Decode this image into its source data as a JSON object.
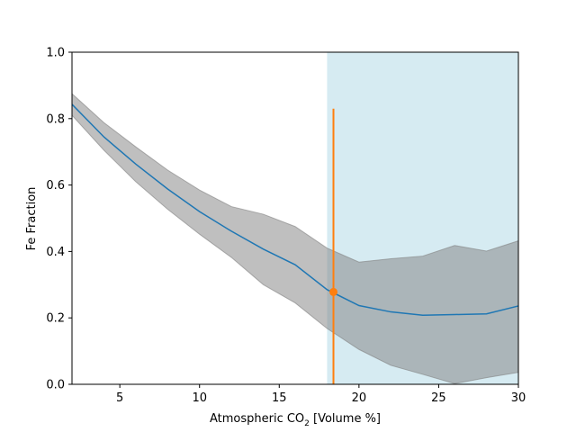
{
  "chart_data": {
    "type": "line",
    "xlabel_main": "Atmospheric CO",
    "xlabel_sub": "2",
    "xlabel_tail": " [Volume %]",
    "ylabel": "Fe Fraction",
    "xlim": [
      2,
      30
    ],
    "ylim": [
      0,
      1
    ],
    "xticks": [
      5,
      10,
      15,
      20,
      25,
      30
    ],
    "yticks": [
      0.0,
      0.2,
      0.4,
      0.6,
      0.8,
      1.0
    ],
    "xtick_labels": [
      "5",
      "10",
      "15",
      "20",
      "25",
      "30"
    ],
    "ytick_labels": [
      "0.0",
      "0.2",
      "0.4",
      "0.6",
      "0.8",
      "1.0"
    ],
    "grid": false,
    "shaded_region": {
      "x_start": 18,
      "x_end": 30,
      "color": "#add8e6"
    },
    "mean_line": {
      "color": "#1f77b4",
      "x": [
        2,
        4,
        6,
        8,
        10,
        12,
        14,
        16,
        18,
        20,
        22,
        24,
        26,
        28,
        30
      ],
      "y": [
        0.843,
        0.745,
        0.663,
        0.588,
        0.52,
        0.461,
        0.407,
        0.36,
        0.285,
        0.237,
        0.218,
        0.208,
        0.21,
        0.212,
        0.236
      ]
    },
    "band": {
      "color": "#808080",
      "x": [
        2,
        4,
        6,
        8,
        10,
        12,
        14,
        16,
        18,
        20,
        22,
        24,
        26,
        28,
        30
      ],
      "lower": [
        0.81,
        0.705,
        0.61,
        0.527,
        0.452,
        0.382,
        0.3,
        0.245,
        0.168,
        0.105,
        0.057,
        0.03,
        0.002,
        0.02,
        0.036
      ],
      "upper": [
        0.875,
        0.788,
        0.715,
        0.645,
        0.585,
        0.535,
        0.512,
        0.475,
        0.41,
        0.368,
        0.378,
        0.386,
        0.418,
        0.401,
        0.432
      ]
    },
    "marker_point": {
      "color": "#ff7f0e",
      "x": 18.4,
      "y": 0.278,
      "error_low": 0.0,
      "error_high": 0.83
    }
  }
}
